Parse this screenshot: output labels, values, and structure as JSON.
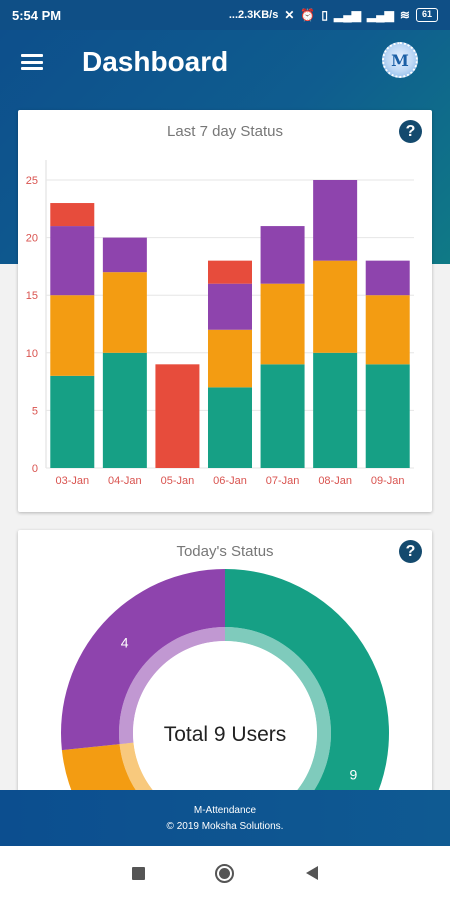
{
  "status_bar": {
    "time": "5:54 PM",
    "speed": "...2.3KB/s",
    "battery": "61"
  },
  "app_bar": {
    "title": "Dashboard",
    "logo_letter": "M"
  },
  "cards": {
    "weekly": {
      "title": "Last 7 day Status",
      "help": "?"
    },
    "today": {
      "title": "Today's Status",
      "help": "?"
    }
  },
  "colors": {
    "green": "#16a085",
    "orange": "#f39c12",
    "purple": "#8e44ad",
    "red": "#e74c3c",
    "axis_label": "#d9534f",
    "brand": "#0f4f86"
  },
  "chart_data": [
    {
      "type": "bar",
      "stacked": true,
      "title": "Last 7 day Status",
      "categories": [
        "03-Jan",
        "04-Jan",
        "05-Jan",
        "06-Jan",
        "07-Jan",
        "08-Jan",
        "09-Jan"
      ],
      "series": [
        {
          "color": "#16a085",
          "values": [
            8,
            10,
            0,
            7,
            9,
            10,
            9
          ]
        },
        {
          "color": "#f39c12",
          "values": [
            7,
            7,
            0,
            5,
            7,
            8,
            6
          ]
        },
        {
          "color": "#8e44ad",
          "values": [
            6,
            3,
            0,
            4,
            5,
            7,
            3
          ]
        },
        {
          "color": "#e74c3c",
          "values": [
            2,
            0,
            9,
            2,
            0,
            0,
            0
          ]
        }
      ],
      "ylim": [
        0,
        25
      ],
      "yticks": [
        0,
        5,
        10,
        15,
        20,
        25
      ],
      "grid": true
    },
    {
      "type": "pie",
      "donut": true,
      "title": "Today's Status",
      "center_label": "Total 9 Users",
      "total": 9,
      "slices": [
        {
          "value": 9,
          "label": "9",
          "color": "#16a085"
        },
        {
          "value": 2,
          "label": "",
          "color": "#f39c12"
        },
        {
          "value": 4,
          "label": "4",
          "color": "#8e44ad"
        }
      ]
    }
  ],
  "footer": {
    "app_name": "M-Attendance",
    "copyright": "© 2019 Moksha Solutions."
  }
}
